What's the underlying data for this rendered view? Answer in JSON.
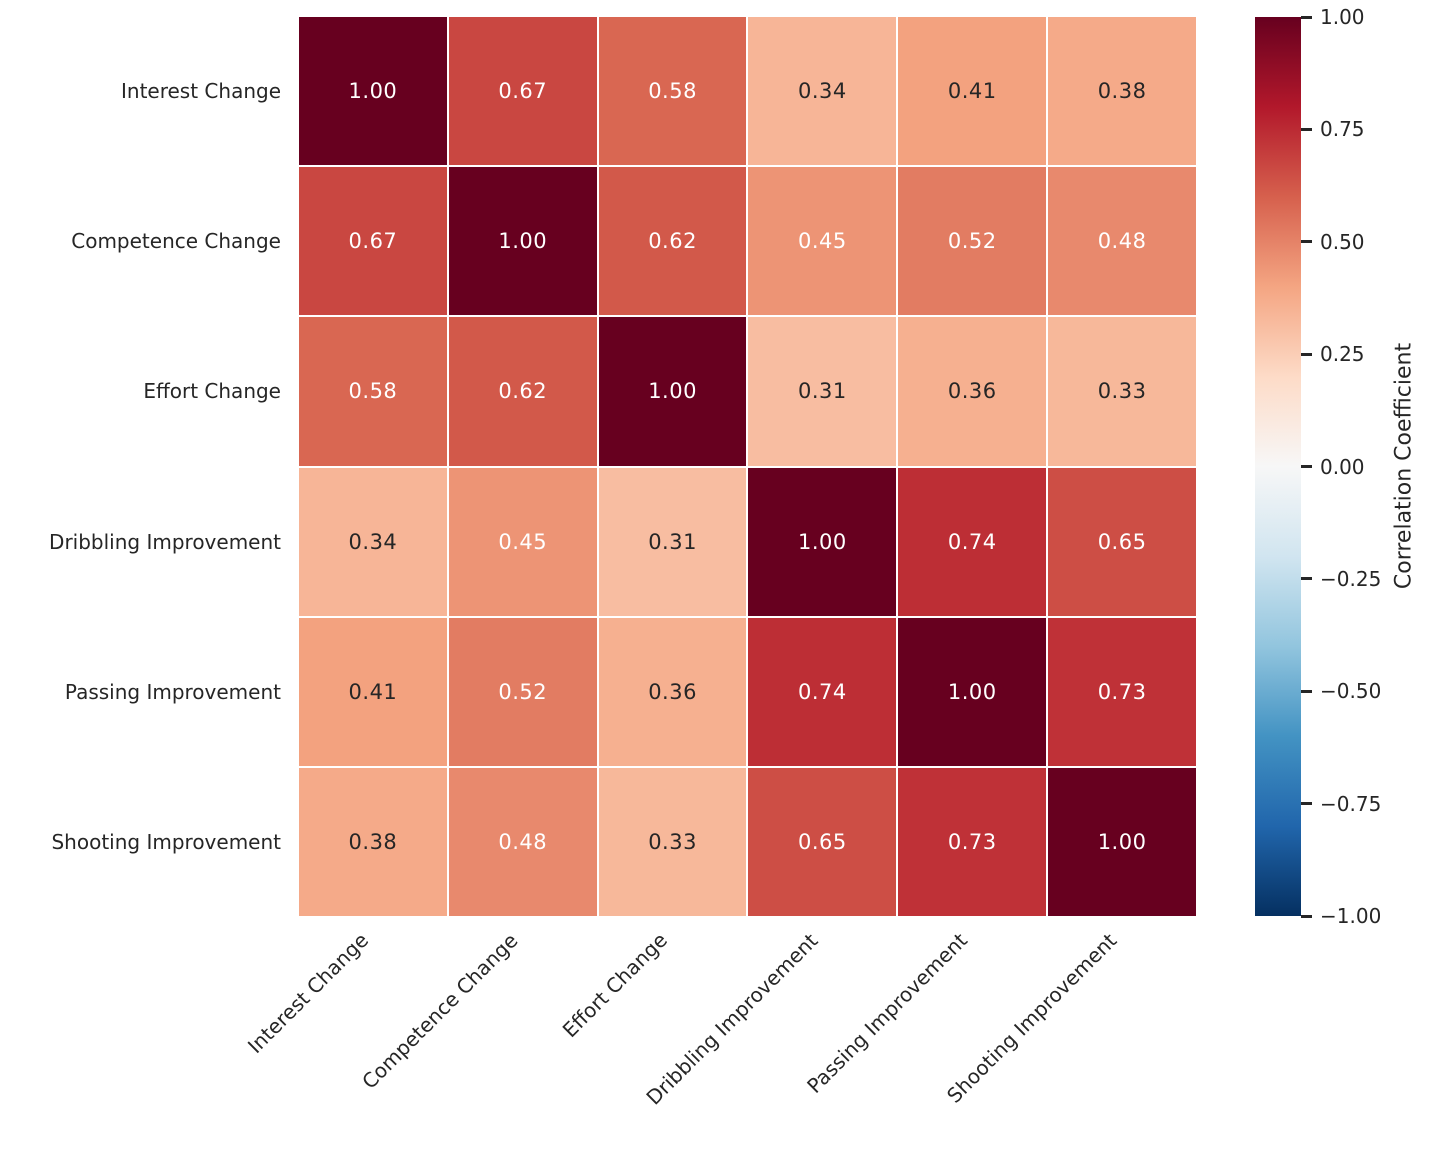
{
  "chart_data": {
    "type": "heatmap",
    "title": "",
    "x_labels": [
      "Interest Change",
      "Competence Change",
      "Effort Change",
      "Dribbling Improvement",
      "Passing Improvement",
      "Shooting Improvement"
    ],
    "y_labels": [
      "Interest Change",
      "Competence Change",
      "Effort Change",
      "Dribbling Improvement",
      "Passing Improvement",
      "Shooting Improvement"
    ],
    "matrix": [
      [
        1.0,
        0.67,
        0.58,
        0.34,
        0.41,
        0.38
      ],
      [
        0.67,
        1.0,
        0.62,
        0.45,
        0.52,
        0.48
      ],
      [
        0.58,
        0.62,
        1.0,
        0.31,
        0.36,
        0.33
      ],
      [
        0.34,
        0.45,
        0.31,
        1.0,
        0.74,
        0.65
      ],
      [
        0.41,
        0.52,
        0.36,
        0.74,
        1.0,
        0.73
      ],
      [
        0.38,
        0.48,
        0.33,
        0.65,
        0.73,
        1.0
      ]
    ],
    "annotation_decimals": 2,
    "colorbar": {
      "label": "Correlation Coefficient",
      "ticks": [
        "1.00",
        "0.75",
        "0.50",
        "0.25",
        "0.00",
        "−0.25",
        "−0.50",
        "−0.75",
        "−1.00"
      ],
      "vmin": -1,
      "vmax": 1
    },
    "colormap": {
      "name": "RdBu_r",
      "stops_top_to_bottom": [
        "#67001f",
        "#b2182b",
        "#d6604d",
        "#f4a582",
        "#fddbc7",
        "#f7f7f7",
        "#d1e5f0",
        "#92c5de",
        "#4393c3",
        "#2166ac",
        "#053061"
      ]
    },
    "cell_text_colors": {
      "dark": "#262626",
      "light": "#ffffff"
    },
    "grid_line_color": "#ffffff",
    "background_color": "#ffffff",
    "legend_position": "right-colorbar",
    "grid": "off"
  }
}
